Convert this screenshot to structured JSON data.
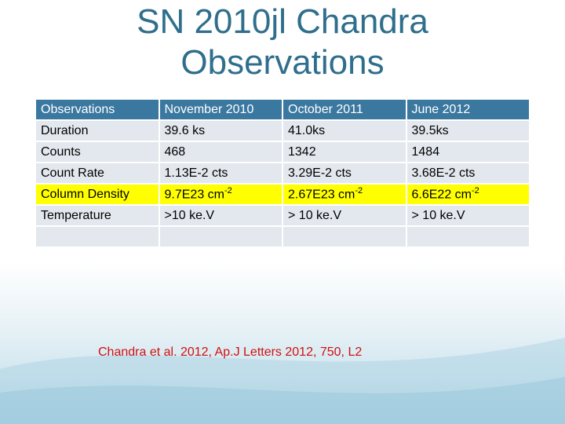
{
  "title": "SN 2010jl Chandra Observations",
  "table": {
    "header": [
      "Observations",
      "November 2010",
      "October 2011",
      "June 2012"
    ],
    "rows": [
      [
        "Duration",
        "39.6 ks",
        "41.0ks",
        "39.5ks"
      ],
      [
        "Counts",
        "468",
        "1342",
        "1484"
      ],
      [
        "Count Rate",
        "1.13E-2 cts",
        "3.29E-2 cts",
        "3.68E-2 cts"
      ],
      [
        "Column Density",
        {
          "text": "9.7E23 cm",
          "sup": "-2"
        },
        {
          "text": "2.67E23 cm",
          "sup": "-2"
        },
        {
          "text": "6.6E22 cm",
          "sup": "-2"
        }
      ],
      [
        "Temperature",
        ">10 ke.V",
        "> 10 ke.V",
        "> 10 ke.V"
      ]
    ]
  },
  "footnote": "Chandra et al. 2012, Ap.J Letters 2012, 750, L2"
}
